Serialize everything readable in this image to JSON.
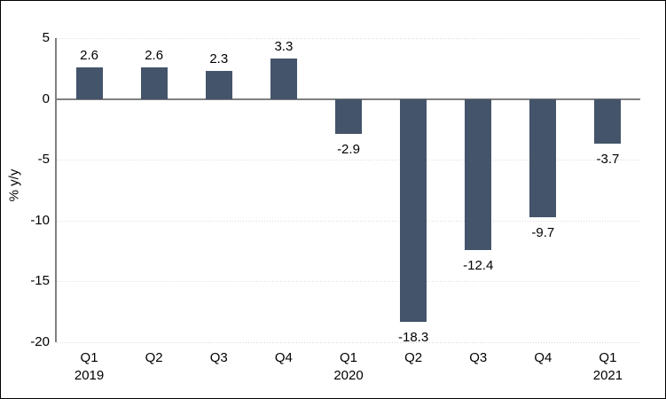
{
  "page": {
    "background_color": "#FFFFFF",
    "frame_border_color": "#000000"
  },
  "chart_data": {
    "type": "bar",
    "title": "",
    "xlabel": "",
    "ylabel": "% y/y",
    "categories": [
      "Q1",
      "Q2",
      "Q3",
      "Q4",
      "Q1",
      "Q2",
      "Q3",
      "Q4",
      "Q1"
    ],
    "year_labels": [
      "2019",
      "",
      "",
      "",
      "2020",
      "",
      "",
      "",
      "2021"
    ],
    "values": [
      2.6,
      2.6,
      2.3,
      3.3,
      -2.9,
      -18.3,
      -12.4,
      -9.7,
      -3.7
    ],
    "value_labels": [
      "2.6",
      "2.6",
      "2.3",
      "3.3",
      "-2.9",
      "-18.3",
      "-12.4",
      "-9.7",
      "-3.7"
    ],
    "ylim": [
      -20,
      5
    ],
    "yticks": [
      5,
      0,
      -5,
      -10,
      -15,
      -20
    ],
    "ytick_labels": [
      "5",
      "0",
      "-5",
      "-10",
      "-15",
      "-20"
    ],
    "grid": "horizontal-dotted",
    "legend": "none",
    "bar_color": "#44546A",
    "axis_color": "#808080",
    "gridline_color": "#D9D9D9",
    "label_color": "#000000"
  }
}
